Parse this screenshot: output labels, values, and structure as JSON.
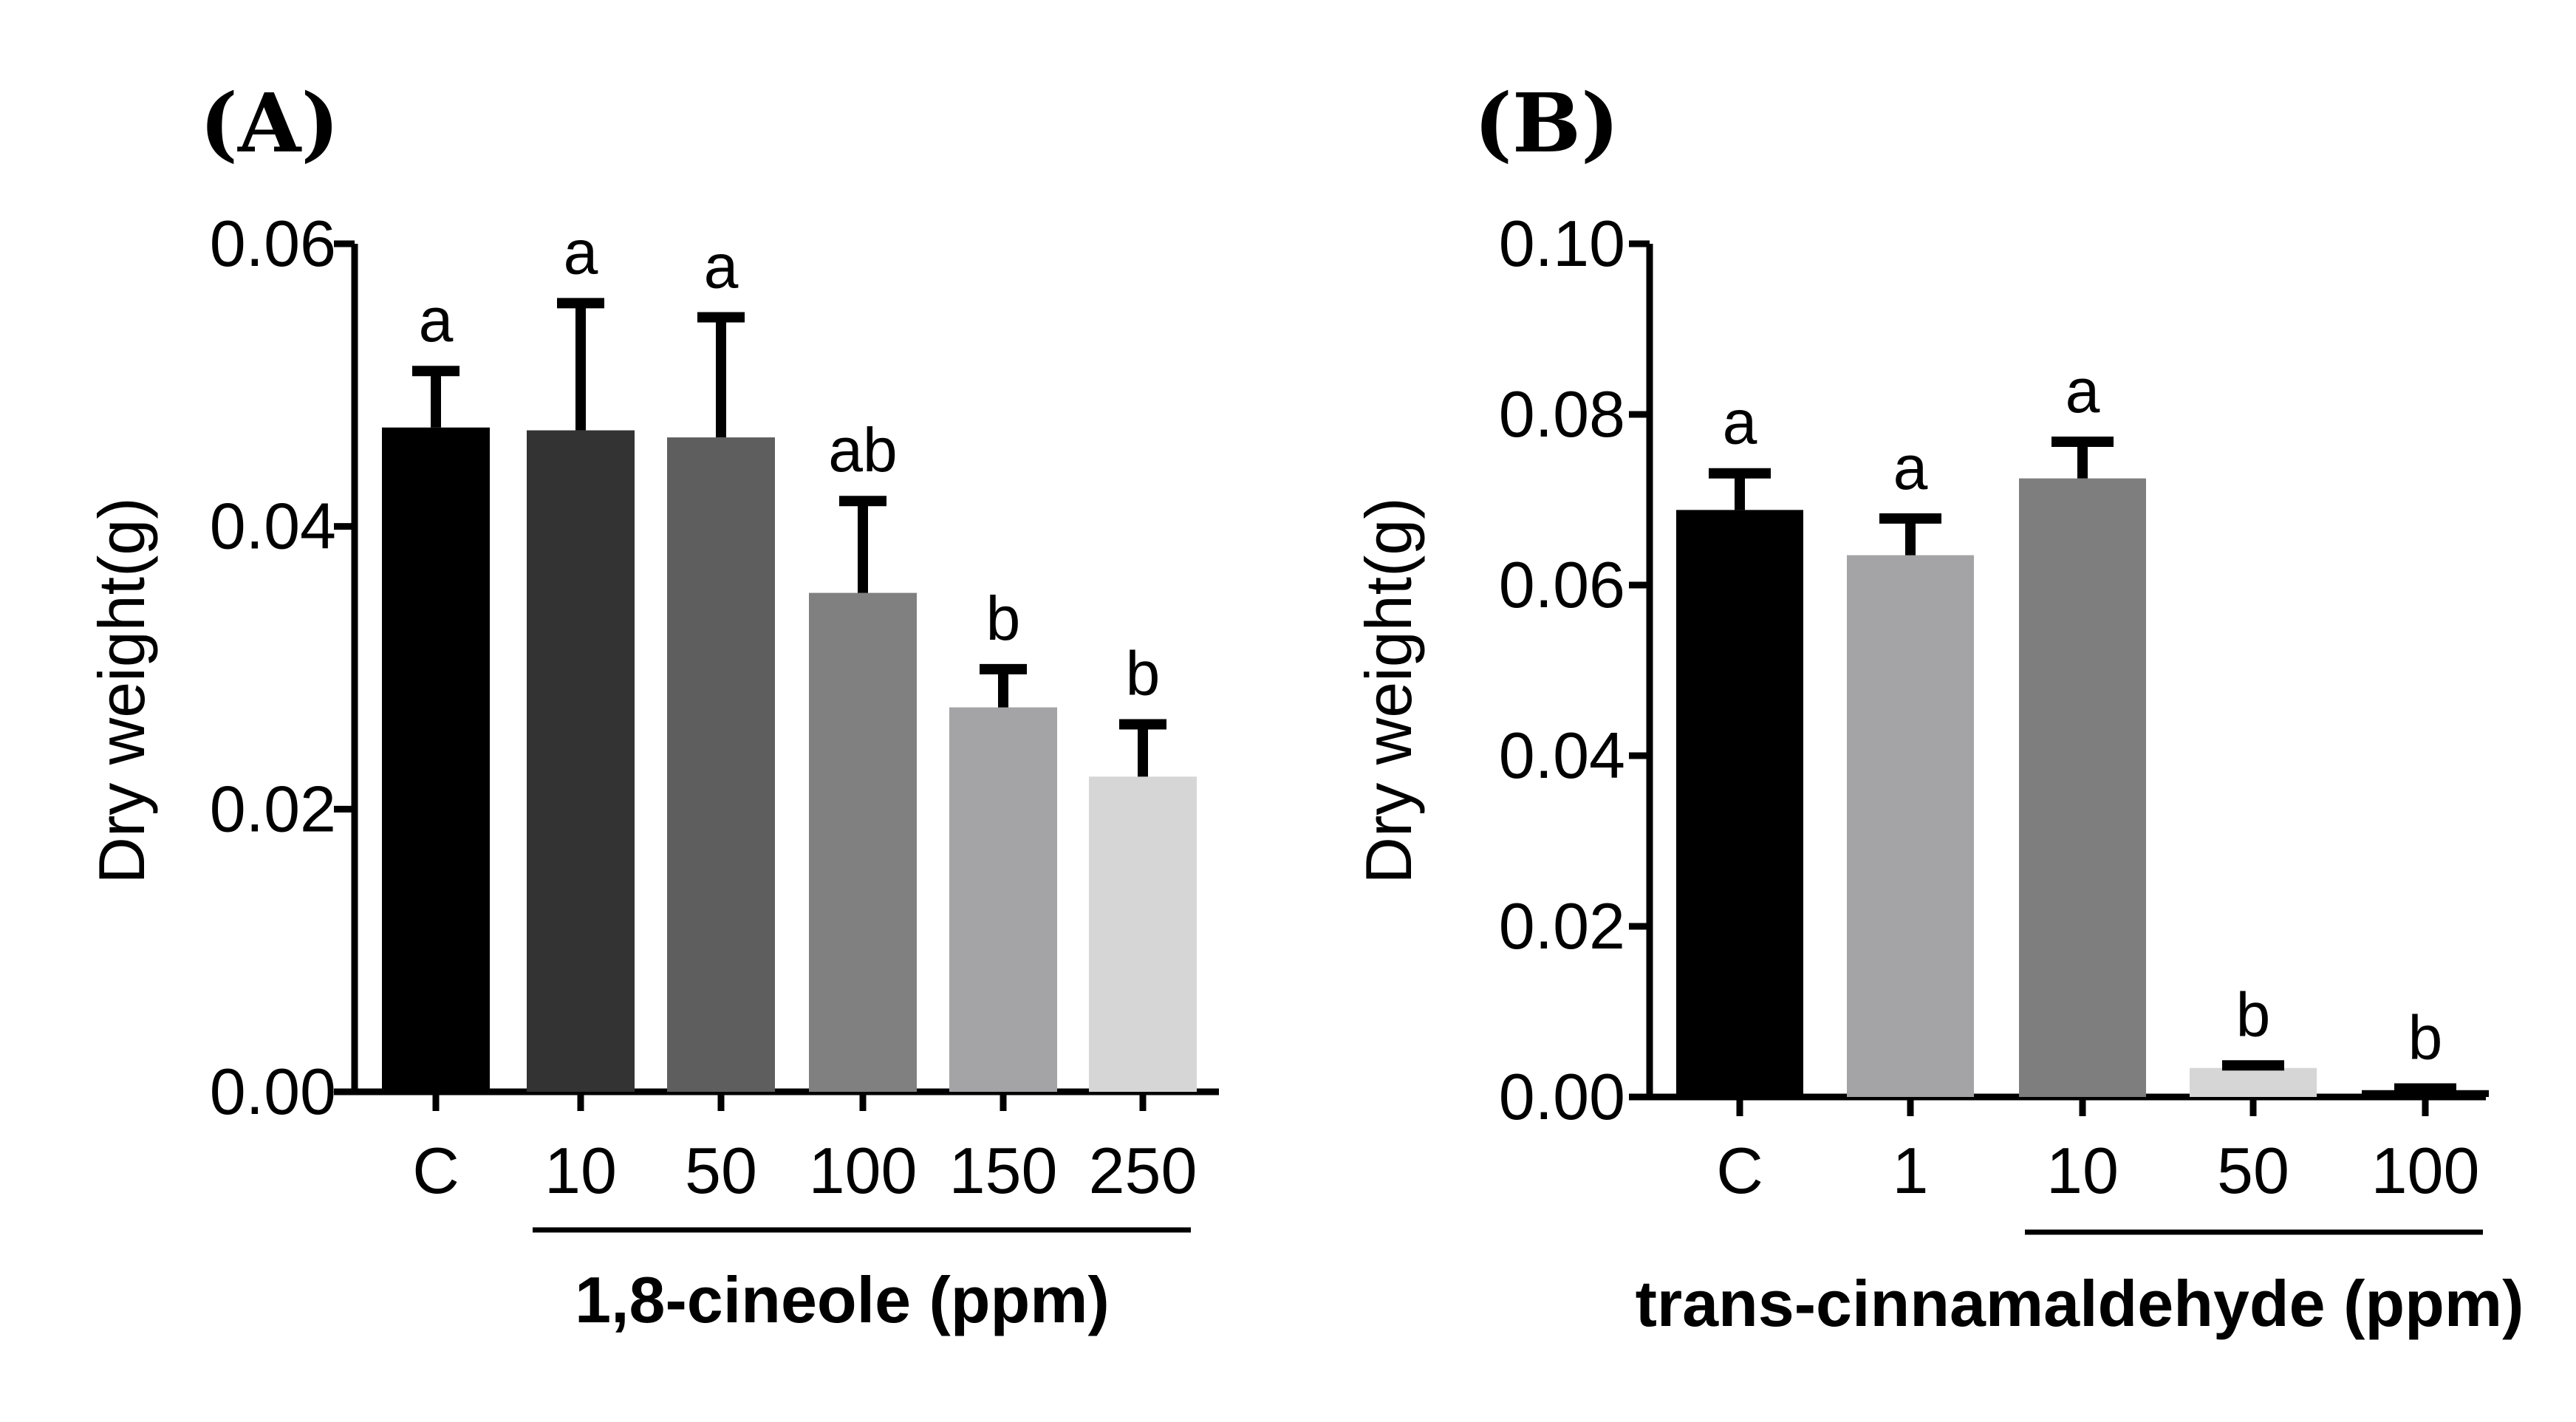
{
  "chart_data": [
    {
      "type": "bar",
      "panel": "(A)",
      "ylabel": "Dry weight(g)",
      "xlabel": "1,8-cineole (ppm)",
      "ylim": [
        0,
        0.06
      ],
      "yticks": [
        "0.00",
        "0.02",
        "0.04",
        "0.06"
      ],
      "categories": [
        "C",
        "10",
        "50",
        "100",
        "150",
        "250"
      ],
      "values": [
        0.047,
        0.0468,
        0.0463,
        0.0353,
        0.0272,
        0.0223
      ],
      "errors": [
        0.004,
        0.009,
        0.0085,
        0.0065,
        0.0027,
        0.0037
      ],
      "significance": [
        "a",
        "a",
        "a",
        "ab",
        "b",
        "b"
      ],
      "colors": [
        "#000000",
        "#333333",
        "#5e5e5e",
        "#808080",
        "#a4a4a7",
        "#d6d6d6"
      ],
      "treatment_group": [
        "10",
        "250"
      ]
    },
    {
      "type": "bar",
      "panel": "(B)",
      "ylabel": "Dry weight(g)",
      "xlabel": "trans-cinnamaldehyde (ppm)",
      "ylim": [
        0,
        0.1
      ],
      "yticks": [
        "0.00",
        "0.02",
        "0.04",
        "0.06",
        "0.08",
        "0.10"
      ],
      "categories": [
        "C",
        "1",
        "10",
        "50",
        "100"
      ],
      "values": [
        0.0688,
        0.0635,
        0.0725,
        0.0034,
        0.0008
      ],
      "errors": [
        0.0043,
        0.0043,
        0.0043,
        0.0003,
        0.0002
      ],
      "significance": [
        "a",
        "a",
        "a",
        "b",
        "b"
      ],
      "colors": [
        "#000000",
        "#a4a4a7",
        "#7e7e7e",
        "#d6d6d6",
        "#000000"
      ],
      "treatment_group": [
        "10",
        "100"
      ]
    }
  ]
}
